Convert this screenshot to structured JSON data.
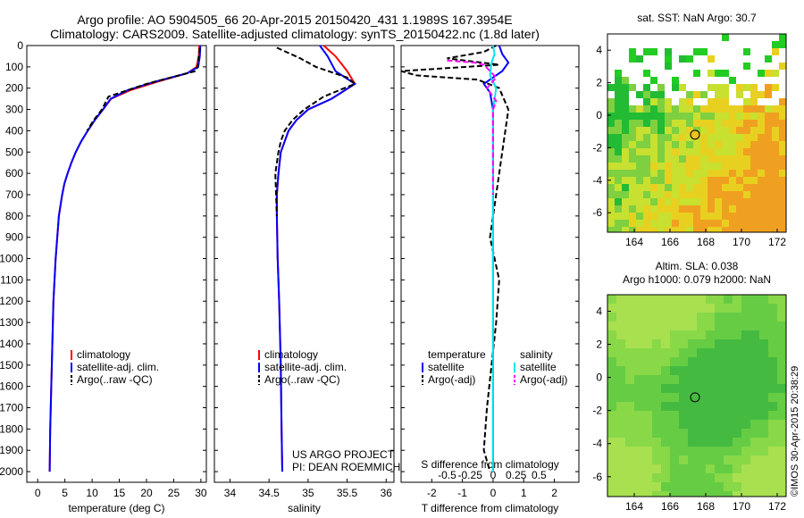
{
  "header": {
    "title_line1": "Argo profile: AO 5904505_66 20-Apr-2015 20150420_431 1.1989S 167.3954E",
    "title_line2": "Climatology: CARS2009. Satellite-adjusted climatology: synTS_20150422.nc (1.8d later)"
  },
  "colors": {
    "climatology": "#ff0000",
    "satellite": "#0000ff",
    "argo": "#000000",
    "sal_satellite": "#00e5ee",
    "sal_argo": "#ff00ff"
  },
  "chart_data": [
    {
      "type": "line",
      "name": "temperature",
      "xlabel": "temperature (deg C)",
      "ylabel": "",
      "xlim": [
        -2,
        31
      ],
      "ylim": [
        2050,
        0
      ],
      "xticks": [
        0,
        5,
        10,
        15,
        20,
        25,
        30
      ],
      "yticks": [
        0,
        100,
        200,
        300,
        400,
        500,
        600,
        700,
        800,
        900,
        1000,
        1100,
        1200,
        1300,
        1400,
        1500,
        1600,
        1700,
        1800,
        1900,
        2000
      ],
      "legend": {
        "placement": "lower-center",
        "entries": [
          "climatology",
          "satellite-adj. clim.",
          "Argo(..raw -QC)"
        ]
      },
      "series": [
        {
          "name": "climatology",
          "color": "#ff0000",
          "x": [
            29.7,
            29.6,
            29.2,
            27.5,
            22,
            17,
            13.5,
            12,
            10.5,
            9.2,
            8,
            7,
            6.2,
            5.5,
            4.9,
            4.5,
            3.9,
            3.3,
            2.9,
            2.7,
            2.5,
            2.3,
            2.2
          ],
          "y": [
            0,
            50,
            100,
            130,
            170,
            210,
            250,
            300,
            350,
            400,
            450,
            500,
            550,
            600,
            650,
            700,
            800,
            1000,
            1200,
            1400,
            1600,
            1800,
            2000
          ]
        },
        {
          "name": "satellite-adj. clim.",
          "color": "#0000ff",
          "x": [
            29.9,
            29.8,
            29.5,
            27.5,
            21.5,
            16.5,
            13.4,
            12,
            10.5,
            9.2,
            8,
            7,
            6.2,
            5.5,
            4.9,
            4.5,
            3.9,
            3.3,
            2.9,
            2.7,
            2.5,
            2.3,
            2.2
          ],
          "y": [
            0,
            50,
            100,
            130,
            170,
            210,
            250,
            300,
            350,
            400,
            450,
            500,
            550,
            600,
            650,
            700,
            800,
            1000,
            1200,
            1400,
            1600,
            1800,
            2000
          ]
        },
        {
          "name": "Argo(..raw -QC)",
          "color": "#000000",
          "dashed": true,
          "x": [
            29.8,
            29.6,
            29.4,
            29.0,
            26,
            20,
            13,
            11.8,
            10.3,
            9.1
          ],
          "y": [
            10,
            50,
            100,
            120,
            140,
            180,
            240,
            300,
            350,
            400
          ]
        }
      ]
    },
    {
      "type": "line",
      "name": "salinity",
      "xlabel": "salinity",
      "ylabel": "",
      "xlim": [
        33.8,
        36.1
      ],
      "ylim": [
        2050,
        0
      ],
      "xticks": [
        34,
        34.5,
        35,
        35.5,
        36
      ],
      "legend": {
        "placement": "lower-center",
        "entries": [
          "climatology",
          "satellite-adj. clim.",
          "Argo(..raw -QC)"
        ]
      },
      "annotations": [
        "US ARGO PROJECT",
        "PI: DEAN ROEMMICH"
      ],
      "series": [
        {
          "name": "climatology",
          "color": "#ff0000",
          "x": [
            35.2,
            35.35,
            35.5,
            35.6,
            35.3,
            35.0,
            34.85,
            34.75,
            34.7,
            34.65,
            34.62,
            34.6,
            34.6,
            34.61,
            34.63,
            34.65,
            34.66,
            34.67
          ],
          "y": [
            0,
            50,
            120,
            180,
            250,
            300,
            350,
            400,
            450,
            500,
            600,
            700,
            800,
            1000,
            1200,
            1500,
            1800,
            2000
          ]
        },
        {
          "name": "satellite-adj. clim.",
          "color": "#0000ff",
          "x": [
            35.15,
            35.25,
            35.35,
            35.6,
            35.3,
            35.0,
            34.85,
            34.75,
            34.7,
            34.65,
            34.62,
            34.6,
            34.6,
            34.61,
            34.63,
            34.65,
            34.66,
            34.67
          ],
          "y": [
            0,
            50,
            120,
            180,
            250,
            300,
            350,
            400,
            450,
            500,
            600,
            700,
            800,
            1000,
            1200,
            1500,
            1800,
            2000
          ]
        },
        {
          "name": "Argo(..raw -QC)",
          "color": "#000000",
          "dashed": true,
          "x": [
            34.6,
            34.9,
            35.1,
            35.5,
            35.6,
            35.2,
            34.95,
            34.8,
            34.7,
            34.65,
            34.62,
            34.58,
            34.6
          ],
          "y": [
            10,
            60,
            100,
            150,
            180,
            240,
            300,
            350,
            400,
            450,
            500,
            600,
            800
          ]
        }
      ]
    },
    {
      "type": "line",
      "name": "difference",
      "xlabel": "T difference from climatology",
      "xlabel2": "S difference from climatology",
      "xlim": [
        -3,
        2.8
      ],
      "ylim": [
        2050,
        0
      ],
      "xticks": [
        -2,
        -1,
        0,
        1,
        2
      ],
      "x2ticks": [
        {
          "pos": -1.5,
          "label": "-0.5"
        },
        {
          "pos": -0.75,
          "label": "-0.25"
        },
        {
          "pos": 0,
          "label": "0"
        },
        {
          "pos": 0.75,
          "label": "0.25"
        },
        {
          "pos": 1.5,
          "label": "0.5"
        }
      ],
      "legend": {
        "placement": "lower-center",
        "entries": [
          "temperature",
          "satellite",
          "Argo(-adj)",
          "salinity",
          "satellite",
          "Argo(-adj)"
        ]
      },
      "series": [
        {
          "name": "temperature satellite",
          "color": "#0000ff",
          "x": [
            0.2,
            0.3,
            0.5,
            0.3,
            0,
            -0.3,
            -0.1,
            0,
            0,
            0,
            0,
            0,
            0
          ],
          "y": [
            0,
            40,
            80,
            120,
            150,
            180,
            220,
            300,
            500,
            800,
            1200,
            1600,
            2000
          ]
        },
        {
          "name": "temperature Argo(-adj)",
          "color": "#000000",
          "dashed": true,
          "x": [
            0.1,
            -0.3,
            -1.5,
            0.2,
            -3,
            -2.5,
            -0.5,
            0.2,
            0.5,
            0.3,
            0.1,
            -0.1,
            0.2,
            0.1,
            -0.2,
            -0.3,
            -0.1
          ],
          "y": [
            0,
            30,
            60,
            90,
            120,
            140,
            160,
            200,
            300,
            500,
            700,
            900,
            1100,
            1300,
            1700,
            1900,
            2000
          ]
        },
        {
          "name": "salinity satellite",
          "color": "#00e5ee",
          "x": [
            0,
            0.05,
            -0.05,
            -0.1,
            0.1,
            0,
            0,
            0
          ],
          "y": [
            0,
            40,
            80,
            140,
            200,
            300,
            800,
            2000
          ]
        },
        {
          "name": "salinity Argo(-adj)",
          "color": "#ff00ff",
          "dashed": true,
          "x": [
            -1.5,
            -0.6,
            -0.3,
            0.1,
            -0.2,
            0.1,
            0,
            0
          ],
          "y": [
            70,
            80,
            90,
            150,
            200,
            260,
            300,
            700
          ]
        }
      ]
    },
    {
      "type": "heatmap",
      "name": "sst",
      "title": "sat. SST: NaN Argo: 30.7",
      "xlim": [
        162.5,
        172.5
      ],
      "ylim": [
        -7.2,
        5
      ],
      "xticks": [
        164,
        166,
        168,
        170,
        172
      ],
      "yticks": [
        4,
        2,
        0,
        -2,
        -4,
        -6
      ],
      "marker": {
        "lon": 167.4,
        "lat": -1.2
      }
    },
    {
      "type": "heatmap",
      "name": "sla",
      "title": "Altim. SLA: 0.038",
      "subtitle": "Argo h1000: 0.079 h2000: NaN",
      "xlim": [
        162.5,
        172.5
      ],
      "ylim": [
        -7.2,
        5
      ],
      "xticks": [
        164,
        166,
        168,
        170,
        172
      ],
      "yticks": [
        4,
        2,
        0,
        -2,
        -4,
        -6
      ],
      "marker": {
        "lon": 167.4,
        "lat": -1.2
      }
    }
  ],
  "footer": {
    "credit": "©IMOS 30-Apr-2015 20:38:29"
  }
}
